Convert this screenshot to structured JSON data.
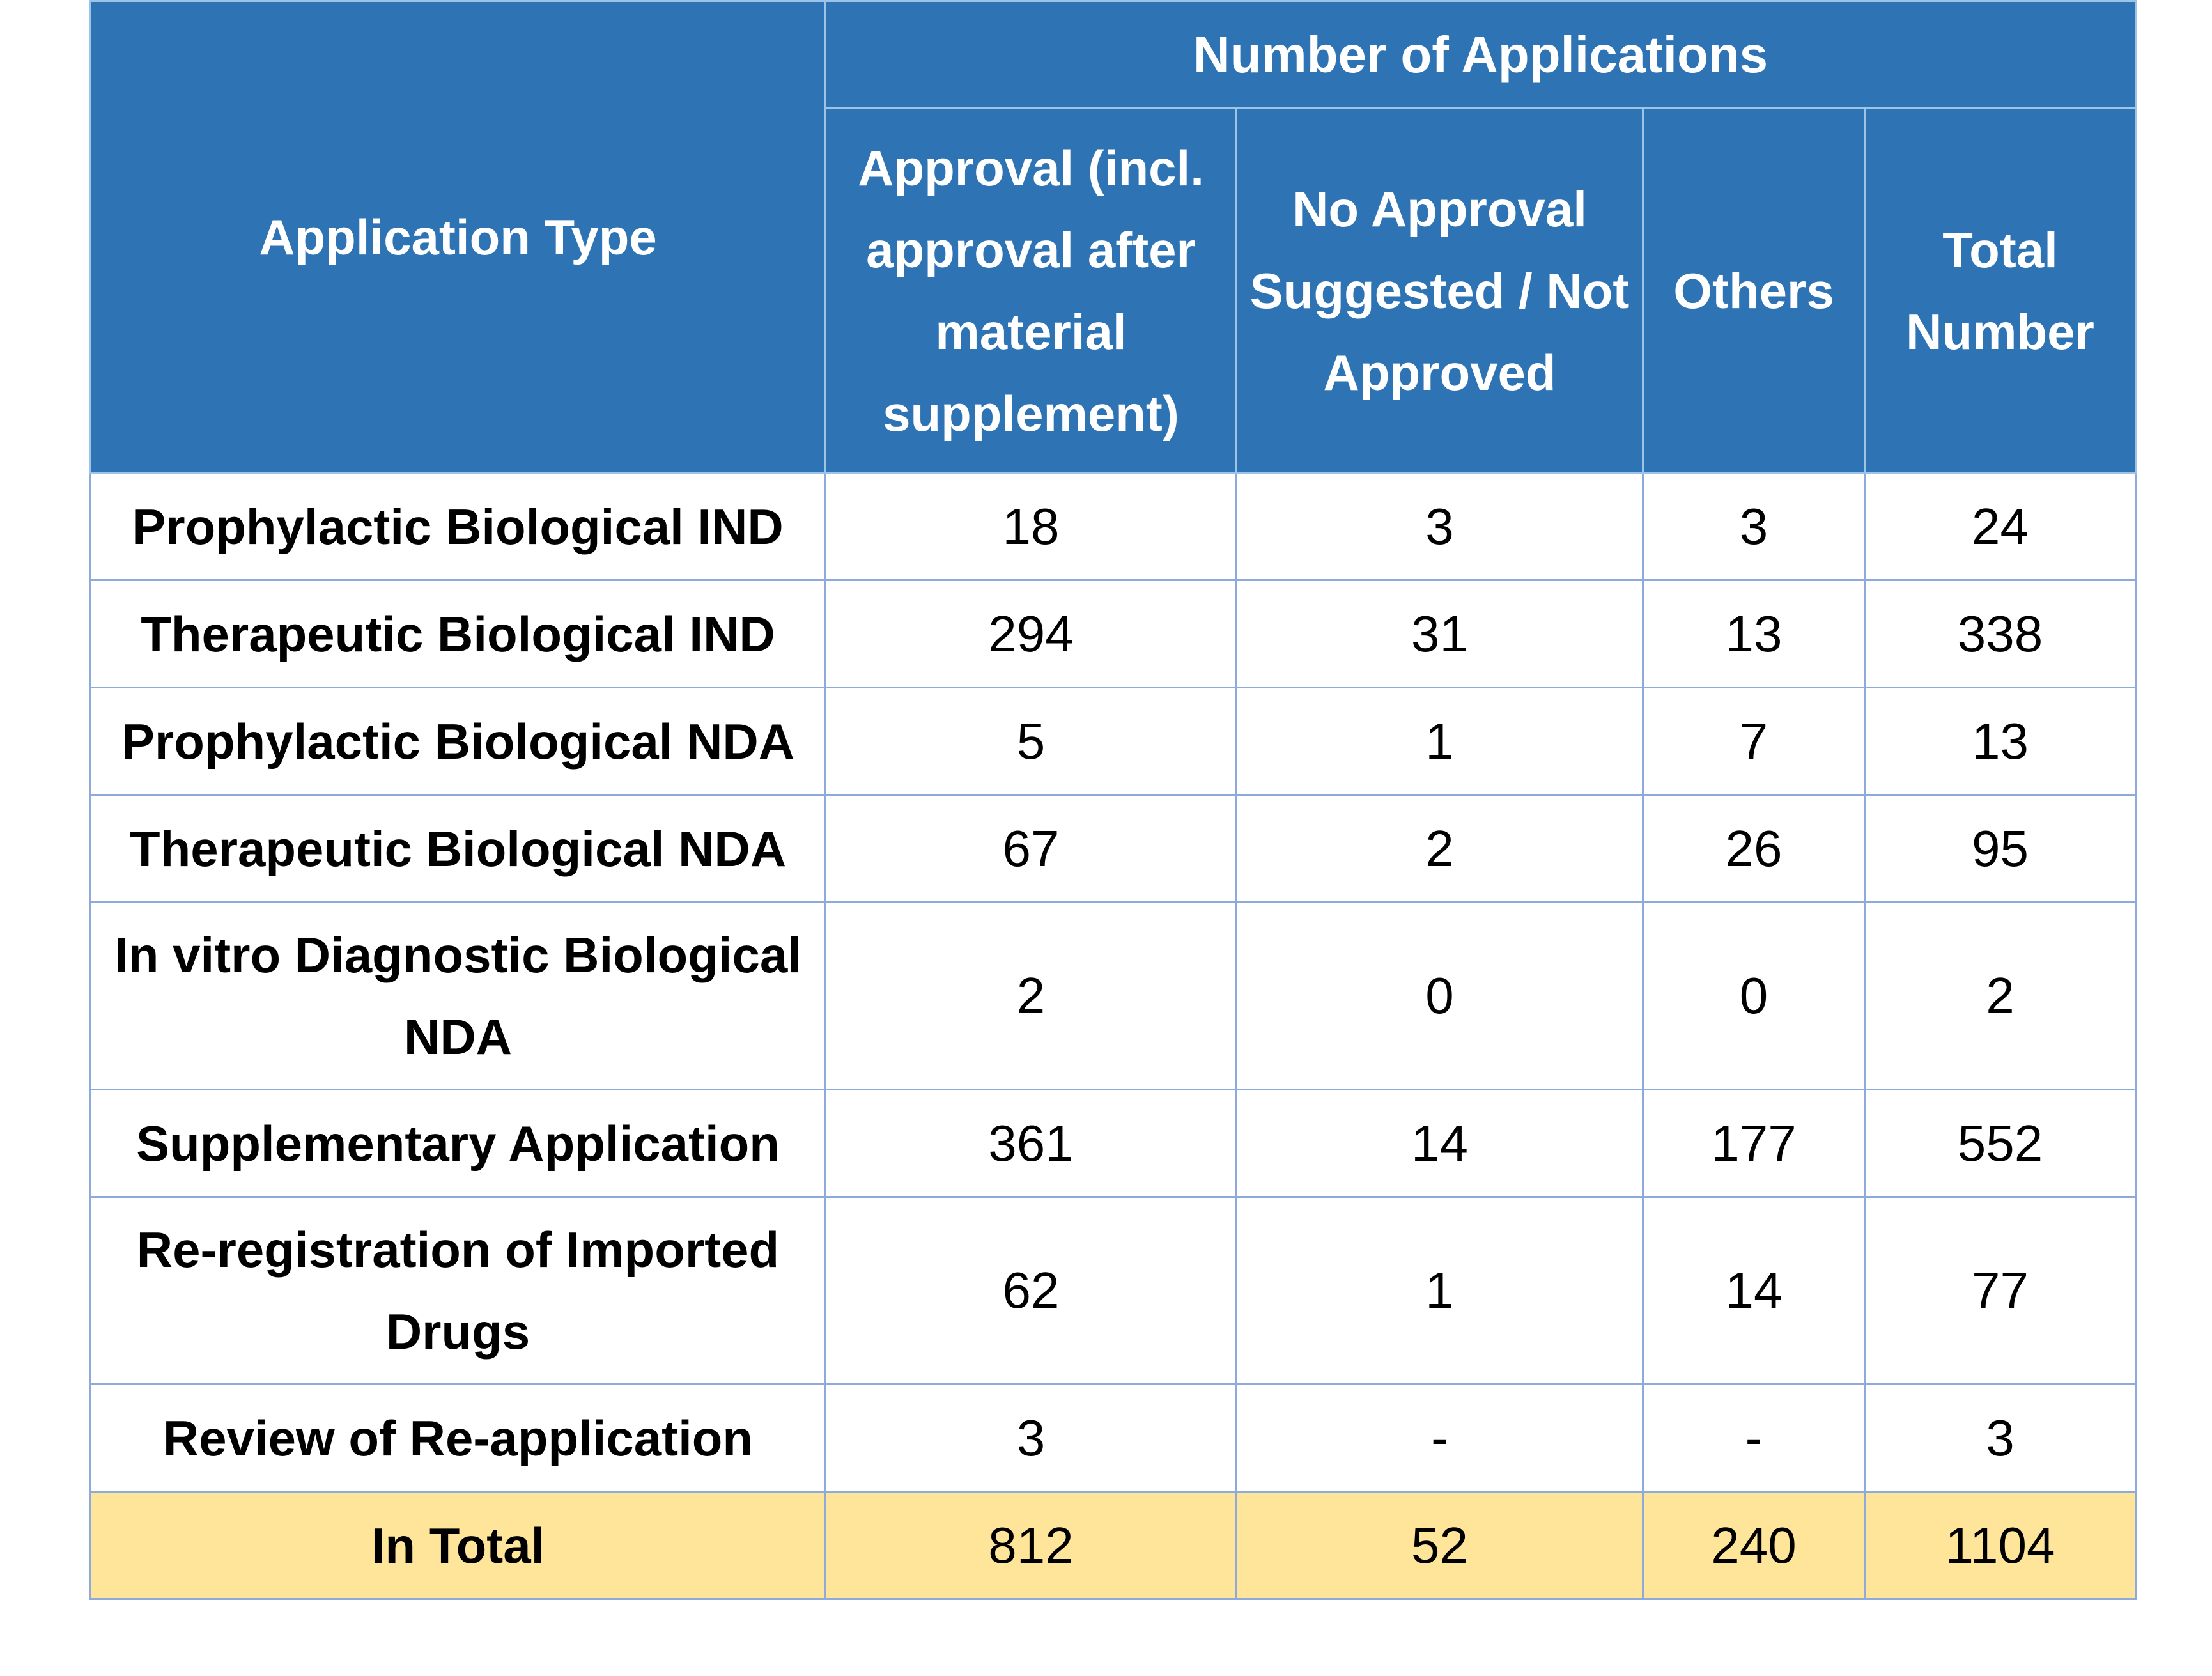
{
  "header": {
    "application_type": "Application Type",
    "number_of_applications": "Number of Applications",
    "columns": [
      "Approval (incl. approval after material supplement)",
      "No Approval Suggested / Not Approved",
      "Others",
      "Total Number"
    ]
  },
  "rows": [
    {
      "type": "Prophylactic Biological IND",
      "approval": "18",
      "no_approval": "3",
      "others": "3",
      "total": "24"
    },
    {
      "type": "Therapeutic Biological IND",
      "approval": "294",
      "no_approval": "31",
      "others": "13",
      "total": "338"
    },
    {
      "type": "Prophylactic Biological NDA",
      "approval": "5",
      "no_approval": "1",
      "others": "7",
      "total": "13"
    },
    {
      "type": "Therapeutic Biological NDA",
      "approval": "67",
      "no_approval": "2",
      "others": "26",
      "total": "95"
    },
    {
      "type": "In vitro Diagnostic Biological NDA",
      "approval": "2",
      "no_approval": "0",
      "others": "0",
      "total": "2"
    },
    {
      "type": "Supplementary Application",
      "approval": "361",
      "no_approval": "14",
      "others": "177",
      "total": "552"
    },
    {
      "type": "Re-registration of Imported Drugs",
      "approval": "62",
      "no_approval": "1",
      "others": "14",
      "total": "77"
    },
    {
      "type": "Review of Re-application",
      "approval": "3",
      "no_approval": "-",
      "others": "-",
      "total": "3"
    }
  ],
  "total_row": {
    "label": "In Total",
    "approval": "812",
    "no_approval": "52",
    "others": "240",
    "total": "1104"
  },
  "colors": {
    "header_bg": "#2e74b5",
    "total_bg": "#ffe599",
    "border": "#8eaadb"
  }
}
